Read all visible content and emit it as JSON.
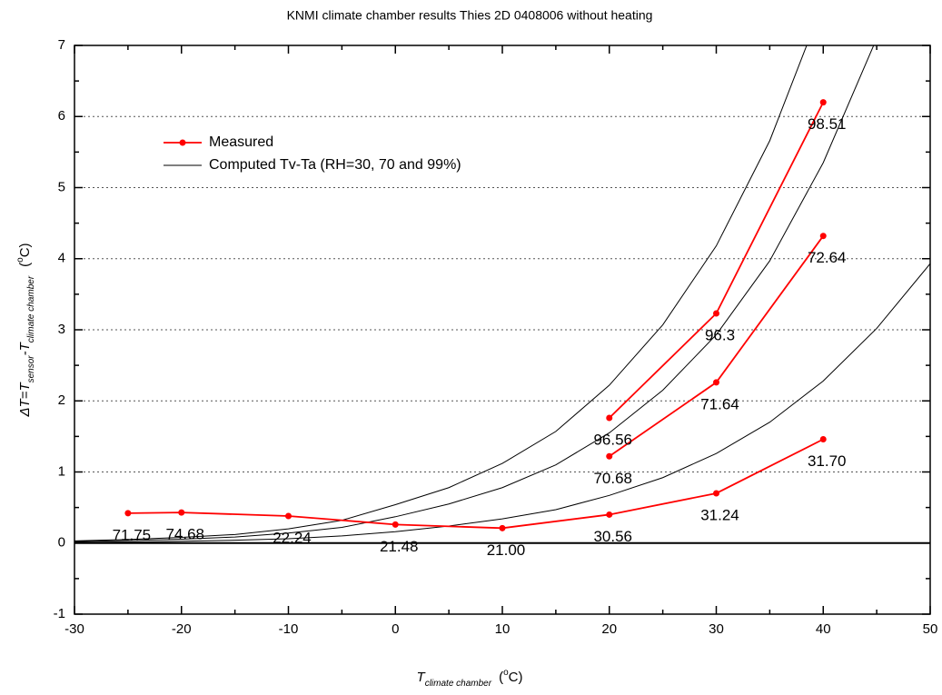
{
  "chart_data": {
    "type": "line",
    "title": "KNMI climate chamber results Thies 2D 0408006 without heating",
    "xlabel": {
      "main": "T",
      "sub": "climate chamber",
      "unit_open": "(",
      "unit_sup": "o",
      "unit_close": "C)"
    },
    "ylabel": {
      "main": "ΔT=T",
      "sub1": "sensor",
      "mid": "-T",
      "sub2": "climate chamber",
      "unit_open": "(",
      "unit_sup": "o",
      "unit_close": "C)"
    },
    "xlim": [
      -30,
      50
    ],
    "ylim": [
      -1,
      7
    ],
    "xticks": [
      -30,
      -20,
      -10,
      0,
      10,
      20,
      30,
      40,
      50
    ],
    "yticks": [
      -1,
      0,
      1,
      2,
      3,
      4,
      5,
      6,
      7
    ],
    "xminorticks": [
      -25,
      -15,
      -5,
      5,
      15,
      25,
      35,
      45
    ],
    "yminorticks": [
      -0.5,
      0.5,
      1.5,
      2.5,
      3.5,
      4.5,
      5.5,
      6.5
    ],
    "grid_lines": [
      1,
      2,
      3,
      4,
      5,
      6
    ],
    "legend": "upper left",
    "series": [
      {
        "name": "Measured",
        "color": "#ff0000",
        "x": [
          -25,
          -20,
          -10,
          0,
          10,
          20,
          30,
          40,
          null,
          20,
          30,
          40,
          null,
          20,
          30,
          40
        ],
        "values": [
          0.42,
          0.43,
          0.38,
          0.26,
          0.21,
          0.4,
          0.7,
          1.46,
          null,
          1.22,
          2.26,
          4.32,
          null,
          1.76,
          3.23,
          6.2
        ],
        "point_labels": [
          "71.75",
          "74.68",
          "22.24",
          "21.48",
          "21.00",
          "30.56",
          "31.24",
          "31.70",
          null,
          "70.68",
          "71.64",
          "72.64",
          null,
          "96.56",
          "96.3",
          "98.51"
        ]
      }
    ],
    "computed": {
      "name": "Computed Tv-Ta (RH=30, 70 and 99%)",
      "color": "#000000",
      "x": [
        -30,
        -25,
        -20,
        -15,
        -10,
        -5,
        0,
        5,
        10,
        15,
        20,
        25,
        30,
        35,
        40,
        45,
        50
      ],
      "curves": [
        [
          0.01,
          0.015,
          0.025,
          0.04,
          0.06,
          0.1,
          0.16,
          0.24,
          0.34,
          0.47,
          0.67,
          0.92,
          1.26,
          1.7,
          2.28,
          3.02,
          3.93
        ],
        [
          0.02,
          0.035,
          0.055,
          0.085,
          0.14,
          0.22,
          0.37,
          0.55,
          0.78,
          1.1,
          1.55,
          2.15,
          2.93,
          3.97,
          5.35,
          7.1,
          null
        ],
        [
          0.03,
          0.05,
          0.08,
          0.12,
          0.2,
          0.32,
          0.54,
          0.78,
          1.12,
          1.57,
          2.22,
          3.07,
          4.18,
          5.66,
          7.6,
          null,
          null
        ]
      ]
    }
  }
}
